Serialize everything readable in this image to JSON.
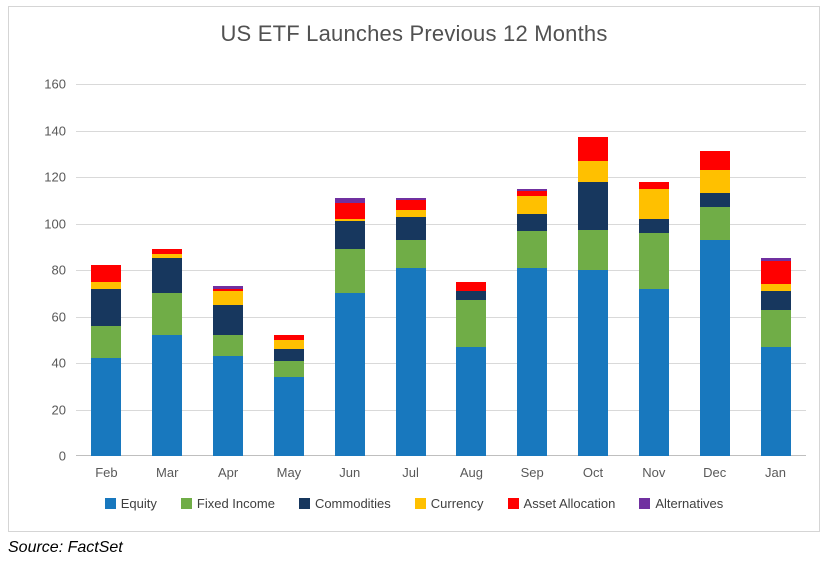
{
  "page": {
    "source_note": "Source: FactSet"
  },
  "chart_data": {
    "type": "bar",
    "stacked": true,
    "title": "US ETF Launches Previous 12 Months",
    "xlabel": "",
    "ylabel": "",
    "ylim": [
      0,
      160
    ],
    "yticks": [
      0,
      20,
      40,
      60,
      80,
      100,
      120,
      140,
      160
    ],
    "grid": true,
    "gridline_color": "#d9d9d9",
    "axis_line_color": "#bfbfbf",
    "axis_text_color": "#595959",
    "title_color": "#515151",
    "legend_position": "bottom",
    "categories": [
      "Feb",
      "Mar",
      "Apr",
      "May",
      "Jun",
      "Jul",
      "Aug",
      "Sep",
      "Oct",
      "Nov",
      "Dec",
      "Jan"
    ],
    "series": [
      {
        "name": "Equity",
        "color": "#1878be",
        "values": [
          42,
          52,
          43,
          34,
          70,
          81,
          47,
          81,
          80,
          72,
          93,
          47
        ]
      },
      {
        "name": "Fixed Income",
        "color": "#70ad47",
        "values": [
          14,
          18,
          9,
          7,
          19,
          12,
          20,
          16,
          17,
          24,
          14,
          16
        ]
      },
      {
        "name": "Commodities",
        "color": "#17375e",
        "values": [
          16,
          15,
          13,
          5,
          12,
          10,
          4,
          7,
          21,
          6,
          6,
          8
        ]
      },
      {
        "name": "Currency",
        "color": "#ffc000",
        "values": [
          3,
          2,
          6,
          4,
          1,
          3,
          0,
          8,
          9,
          13,
          10,
          3
        ]
      },
      {
        "name": "Asset Allocation",
        "color": "#ff0000",
        "values": [
          7,
          2,
          1,
          2,
          7,
          4,
          4,
          2,
          10,
          3,
          8,
          10
        ]
      },
      {
        "name": "Alternatives",
        "color": "#7030a0",
        "values": [
          0,
          0,
          1,
          0,
          2,
          1,
          0,
          1,
          0,
          0,
          0,
          1
        ]
      }
    ],
    "stack_totals": [
      82,
      89,
      73,
      52,
      111,
      111,
      75,
      115,
      137,
      118,
      131,
      85
    ]
  }
}
